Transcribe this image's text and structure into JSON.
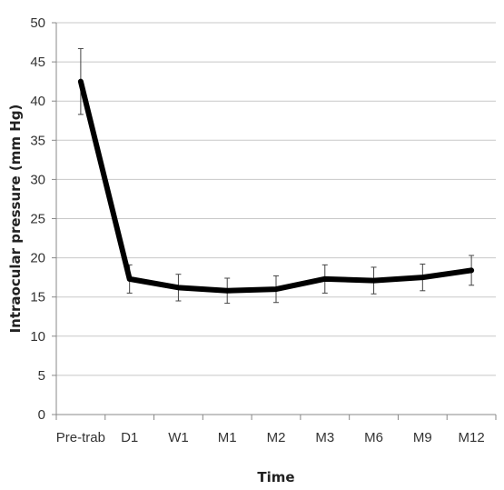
{
  "chart_data": {
    "type": "line",
    "title": "",
    "xlabel": "Time",
    "ylabel": "Intraocular pressure (mm Hg)",
    "categories": [
      "Pre-trab",
      "D1",
      "W1",
      "M1",
      "M2",
      "M3",
      "M6",
      "M9",
      "M12"
    ],
    "series": [
      {
        "values": [
          42.5,
          17.3,
          16.2,
          15.8,
          16.0,
          17.3,
          17.1,
          17.5,
          18.4
        ],
        "error": [
          4.2,
          1.8,
          1.7,
          1.6,
          1.7,
          1.8,
          1.7,
          1.7,
          1.9
        ]
      }
    ],
    "ylim": [
      0,
      50
    ],
    "yticks": [
      0,
      5,
      10,
      15,
      20,
      25,
      30,
      35,
      40,
      45,
      50
    ],
    "grid": true,
    "line_color": "#000000",
    "grid_color": "#c8c8c8",
    "axis_color": "#888888"
  }
}
